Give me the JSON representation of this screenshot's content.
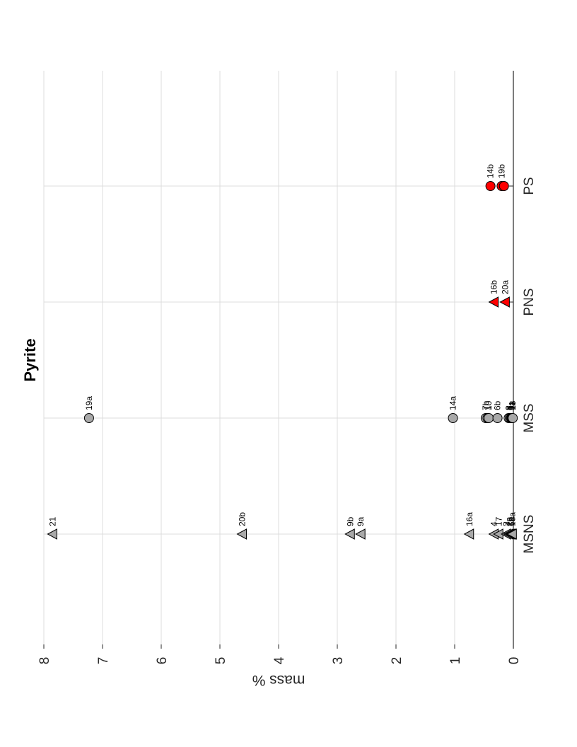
{
  "chart_data": {
    "type": "scatter",
    "title": "Pyrite",
    "ylabel": "mass %",
    "xlabel": "",
    "ylim": [
      0,
      8
    ],
    "yticks": [
      0,
      1,
      2,
      3,
      4,
      5,
      6,
      7,
      8
    ],
    "categories": [
      "MSNS",
      "MSS",
      "PNS",
      "PS"
    ],
    "grid": true,
    "orientation": "rotated 90° counter-clockwise (page in landscape)",
    "marker_colors": {
      "gray": "#a9a9a9",
      "red": "#ff0000",
      "edge": "#000000"
    },
    "series": [
      {
        "category": "MSNS",
        "marker": "triangle",
        "color": "gray",
        "points": [
          {
            "label": "21",
            "value": 7.85
          },
          {
            "label": "20b",
            "value": 4.62
          },
          {
            "label": "9b",
            "value": 2.78
          },
          {
            "label": "9a",
            "value": 2.6
          },
          {
            "label": "16a",
            "value": 0.75
          },
          {
            "label": "4",
            "value": 0.33
          },
          {
            "label": "17",
            "value": 0.25
          },
          {
            "label": "2",
            "value": 0.12
          },
          {
            "label": "7a",
            "value": 0.08
          },
          {
            "label": "7b",
            "value": 0.05
          },
          {
            "label": "6a",
            "value": 0.03
          },
          {
            "label": "18a",
            "value": 0.02
          }
        ]
      },
      {
        "category": "MSS",
        "marker": "circle",
        "color": "gray",
        "points": [
          {
            "label": "19a",
            "value": 7.23
          },
          {
            "label": "14a",
            "value": 1.03
          },
          {
            "label": "7b",
            "value": 0.47
          },
          {
            "label": "1",
            "value": 0.44
          },
          {
            "label": "10",
            "value": 0.42
          },
          {
            "label": "6b",
            "value": 0.27
          },
          {
            "label": "8",
            "value": 0.08
          },
          {
            "label": "3",
            "value": 0.06
          },
          {
            "label": "5",
            "value": 0.04
          },
          {
            "label": "9a",
            "value": 0.03
          },
          {
            "label": "11",
            "value": 0.02
          },
          {
            "label": "13",
            "value": 0.01
          }
        ]
      },
      {
        "category": "PNS",
        "marker": "triangle",
        "color": "red",
        "points": [
          {
            "label": "16b",
            "value": 0.33
          },
          {
            "label": "20a",
            "value": 0.14
          }
        ]
      },
      {
        "category": "PS",
        "marker": "circle",
        "color": "red",
        "points": [
          {
            "label": "14b",
            "value": 0.39
          },
          {
            "label": "19b",
            "value": 0.2
          },
          {
            "label": "",
            "value": 0.16
          }
        ]
      }
    ]
  }
}
